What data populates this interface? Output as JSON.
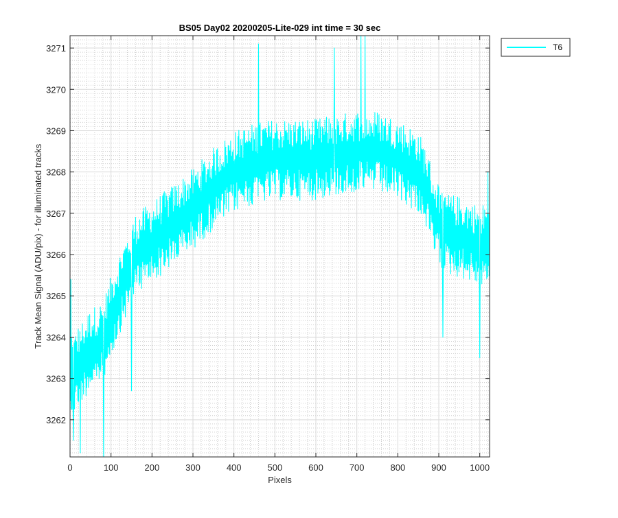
{
  "chart_data": {
    "type": "line",
    "title": "BS05 Day02 20200205-Lite-029 int time = 30 sec",
    "xlabel": "Pixels",
    "ylabel": "Track Mean Signal (ADU/pix) - for illuminated tracks",
    "xlim": [
      0,
      1024
    ],
    "ylim": [
      3261.1,
      3271.3
    ],
    "xticks": [
      0,
      100,
      200,
      300,
      400,
      500,
      600,
      700,
      800,
      900,
      1000
    ],
    "yticks": [
      3262,
      3263,
      3264,
      3265,
      3266,
      3267,
      3268,
      3269,
      3270,
      3271
    ],
    "grid": true,
    "minor_grid": true,
    "legend_position": "outside-top-right",
    "series": [
      {
        "name": "T6",
        "color": "#00FFFF",
        "point_count": 1024,
        "trend": {
          "x": [
            0,
            20,
            50,
            80,
            100,
            130,
            160,
            200,
            250,
            300,
            350,
            400,
            450,
            500,
            550,
            600,
            650,
            700,
            750,
            800,
            850,
            870,
            890,
            920,
            960,
            1000,
            1023
          ],
          "y": [
            3262.9,
            3263.3,
            3263.7,
            3263.9,
            3264.5,
            3265.3,
            3266.0,
            3266.3,
            3266.7,
            3267.1,
            3267.6,
            3268.0,
            3268.2,
            3268.3,
            3268.3,
            3268.3,
            3268.4,
            3268.5,
            3268.5,
            3268.3,
            3268.0,
            3267.6,
            3266.9,
            3266.5,
            3266.4,
            3266.2,
            3266.3
          ]
        },
        "noise_amplitude": 0.9,
        "extremes": [
          {
            "x": 2,
            "y": 3265.4
          },
          {
            "x": 8,
            "y": 3261.5
          },
          {
            "x": 25,
            "y": 3261.2
          },
          {
            "x": 82,
            "y": 3261.1
          },
          {
            "x": 150,
            "y": 3262.7
          },
          {
            "x": 460,
            "y": 3271.1
          },
          {
            "x": 645,
            "y": 3271.0
          },
          {
            "x": 710,
            "y": 3271.3
          },
          {
            "x": 720,
            "y": 3271.3
          },
          {
            "x": 910,
            "y": 3264.0
          },
          {
            "x": 1000,
            "y": 3263.5
          },
          {
            "x": 1020,
            "y": 3268.0
          }
        ]
      }
    ]
  }
}
